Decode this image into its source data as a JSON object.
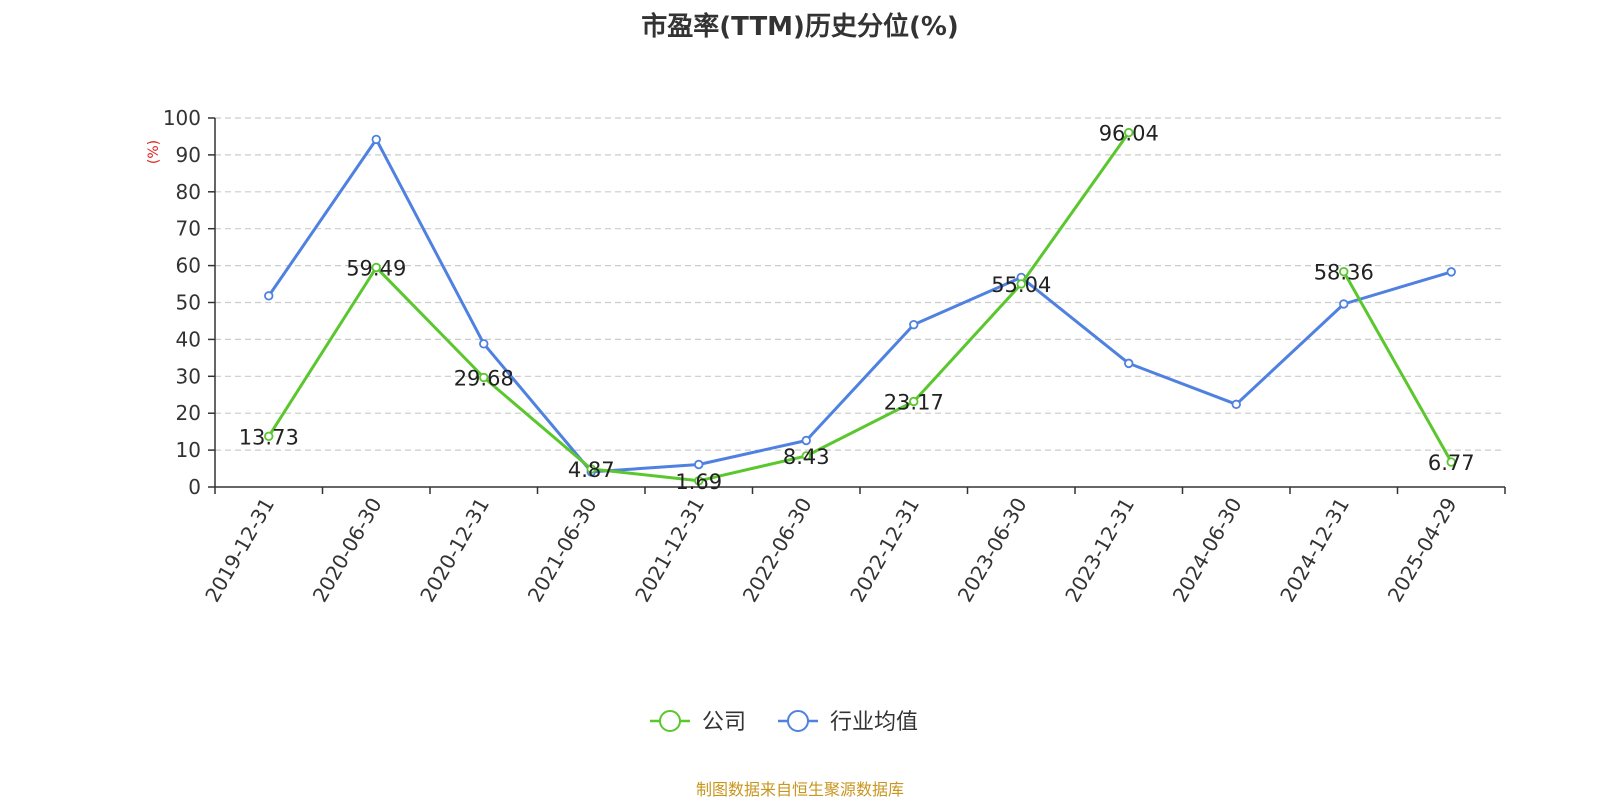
{
  "chart_data": {
    "type": "line",
    "title": "市盈率(TTM)历史分位(%)",
    "ylabel": "(%)",
    "ylim": [
      0,
      100
    ],
    "yticks": [
      0,
      10,
      20,
      30,
      40,
      50,
      60,
      70,
      80,
      90,
      100
    ],
    "grid": true,
    "legend_position": "bottom-center",
    "categories": [
      "2019-12-31",
      "2020-06-30",
      "2020-12-31",
      "2021-06-30",
      "2021-12-31",
      "2022-06-30",
      "2022-12-31",
      "2023-06-30",
      "2023-12-31",
      "2024-06-30",
      "2024-12-31",
      "2025-04-29"
    ],
    "series": [
      {
        "name": "公司",
        "color": "#5bc72e",
        "values": [
          13.73,
          59.49,
          29.68,
          4.87,
          1.69,
          8.43,
          23.17,
          55.04,
          96.04,
          null,
          58.36,
          6.77
        ],
        "labels": [
          "13.73",
          "59.49",
          "29.68",
          "4.87",
          "1.69",
          "8.43",
          "23.17",
          "55.04",
          "96.04",
          "",
          "58.36",
          "6.77"
        ]
      },
      {
        "name": "行业均值",
        "color": "#4f81e0",
        "values": [
          51.8,
          94.2,
          38.8,
          4.1,
          6.1,
          12.6,
          44.0,
          56.8,
          33.5,
          22.4,
          49.6,
          58.3
        ]
      }
    ]
  },
  "source_note": "制图数据来自恒生聚源数据库",
  "colors": {
    "source_note": "#c8961e",
    "unit_label": "#e02020",
    "axis": "#333333",
    "grid": "#cccccc"
  }
}
